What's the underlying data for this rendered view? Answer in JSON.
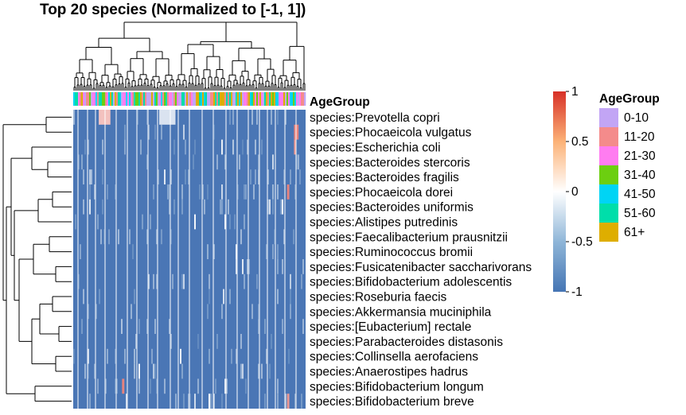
{
  "chart_data": {
    "type": "heatmap",
    "title": "Top 20 species (Normalized to [-1, 1])",
    "rows": [
      "species:Prevotella copri",
      "species:Phocaeicola vulgatus",
      "species:Escherichia coli",
      "species:Bacteroides stercoris",
      "species:Bacteroides fragilis",
      "species:Phocaeicola dorei",
      "species:Bacteroides uniformis",
      "species:Alistipes putredinis",
      "species:Faecalibacterium prausnitzii",
      "species:Ruminococcus bromii",
      "species:Fusicatenibacter saccharivorans",
      "species:Bifidobacterium adolescentis",
      "species:Roseburia faecis",
      "species:Akkermansia muciniphila",
      "species:[Eubacterium] rectale",
      "species:Parabacteroides distasonis",
      "species:Collinsella aerofaciens",
      "species:Anaerostipes hadrus",
      "species:Bifidobacterium longum",
      "species:Bifidobacterium breve"
    ],
    "annotation_label": "AgeGroup",
    "colorbar": {
      "ticks": [
        "1",
        "0.5",
        "0",
        "-0.5",
        "-1"
      ],
      "range": [
        -1,
        1
      ],
      "colors": [
        "#4575b4",
        "#ffffff",
        "#d73027"
      ]
    },
    "legend": {
      "title": "AgeGroup",
      "items": [
        {
          "label": "0-10",
          "color": "#c2a5f5"
        },
        {
          "label": "11-20",
          "color": "#f48b8b"
        },
        {
          "label": "21-30",
          "color": "#ff7cf0"
        },
        {
          "label": "31-40",
          "color": "#6ccf10"
        },
        {
          "label": "41-50",
          "color": "#00d4f5"
        },
        {
          "label": "51-60",
          "color": "#00deaa"
        },
        {
          "label": "61+",
          "color": "#deae00"
        }
      ]
    },
    "hot_spots": [
      {
        "row": 0,
        "col_start": 0.11,
        "col_end": 0.16,
        "value": 0.3
      },
      {
        "row": 0,
        "col_start": 0.37,
        "col_end": 0.44,
        "value": -0.2
      },
      {
        "row": 1,
        "col_start": 0.95,
        "col_end": 0.97,
        "value": 0.6
      },
      {
        "row": 2,
        "col_start": 0.95,
        "col_end": 0.96,
        "value": 0.5
      },
      {
        "row": 5,
        "col_start": 0.92,
        "col_end": 0.93,
        "value": 0.6
      },
      {
        "row": 18,
        "col_start": 0.21,
        "col_end": 0.22,
        "value": 0.6
      },
      {
        "row": 19,
        "col_start": 0.92,
        "col_end": 0.93,
        "value": 0.5
      }
    ]
  }
}
